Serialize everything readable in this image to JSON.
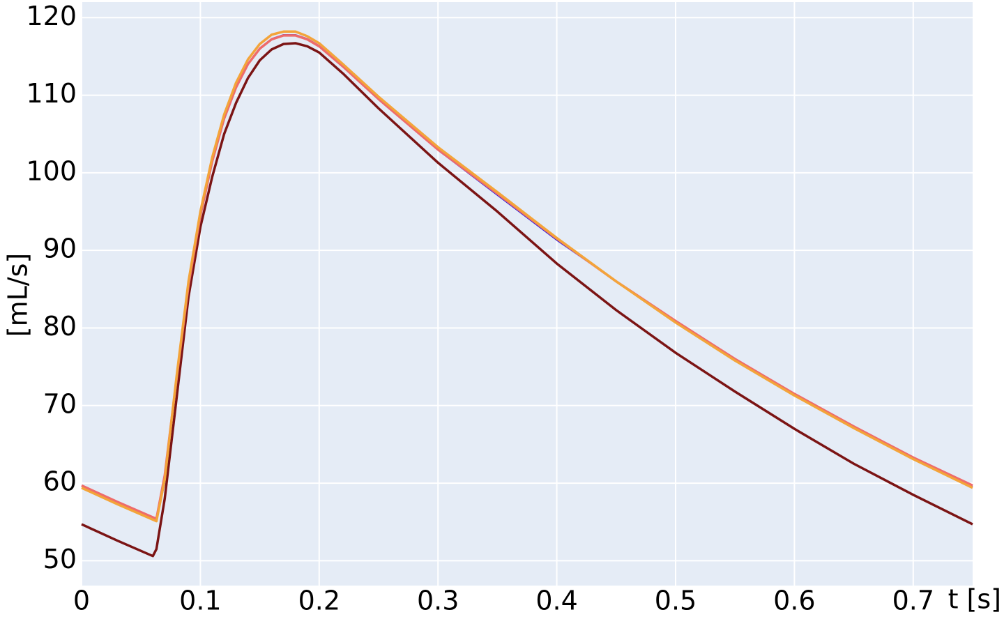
{
  "chart_data": {
    "type": "line",
    "y_label": "[mL/s]",
    "x_label": "t [s]",
    "x": [
      0,
      0.03,
      0.06,
      0.063,
      0.07,
      0.08,
      0.09,
      0.1,
      0.11,
      0.12,
      0.13,
      0.14,
      0.15,
      0.16,
      0.17,
      0.18,
      0.19,
      0.2,
      0.22,
      0.25,
      0.3,
      0.35,
      0.4,
      0.45,
      0.5,
      0.55,
      0.6,
      0.65,
      0.7,
      0.75
    ],
    "series": [
      {
        "color": "#7b1414",
        "values": [
          54.7,
          52.6,
          50.6,
          51.5,
          58,
          71,
          84,
          93,
          99.5,
          105,
          109,
          112.2,
          114.5,
          115.9,
          116.6,
          116.7,
          116.3,
          115.5,
          112.8,
          108.3,
          101.3,
          95,
          88.3,
          82.3,
          76.8,
          71.8,
          67,
          62.5,
          58.5,
          54.7
        ]
      },
      {
        "color": "#1010e0",
        "values": [
          59.6,
          57.5,
          55.5,
          55.1,
          60,
          73,
          85,
          94.2,
          101.3,
          106.8,
          110.9,
          114,
          116.1,
          117.3,
          117.8,
          117.8,
          117.3,
          116.4,
          113.8,
          109.5,
          102.9,
          97.1,
          91.3,
          86,
          80.8,
          75.9,
          71.4,
          67.2,
          63.2,
          59.6
        ]
      },
      {
        "color": "#ee6b6b",
        "values": [
          59.7,
          57.6,
          55.6,
          55.4,
          61,
          73.5,
          85.5,
          94.5,
          101.5,
          107,
          111,
          114,
          116,
          117.2,
          117.7,
          117.7,
          117.2,
          116.3,
          113.7,
          109.5,
          103,
          97.3,
          91.5,
          86,
          80.9,
          76,
          71.5,
          67.3,
          63.3,
          59.7
        ]
      },
      {
        "color": "#f3a43a",
        "values": [
          59.4,
          57.3,
          55.3,
          55.1,
          60.5,
          73.8,
          86,
          95,
          102,
          107.5,
          111.6,
          114.6,
          116.6,
          117.8,
          118.2,
          118.2,
          117.6,
          116.7,
          114,
          109.8,
          103.3,
          97.5,
          91.6,
          86,
          80.7,
          75.8,
          71.3,
          67.1,
          63.1,
          59.4
        ]
      }
    ],
    "xlim": [
      0,
      0.75
    ],
    "ylim": [
      46.8,
      122
    ],
    "xticks": [
      0,
      0.1,
      0.2,
      0.3,
      0.4,
      0.5,
      0.6,
      0.7
    ],
    "yticks": [
      50,
      60,
      70,
      80,
      90,
      100,
      110,
      120
    ],
    "grid": true,
    "background": "#e5ecf6"
  }
}
